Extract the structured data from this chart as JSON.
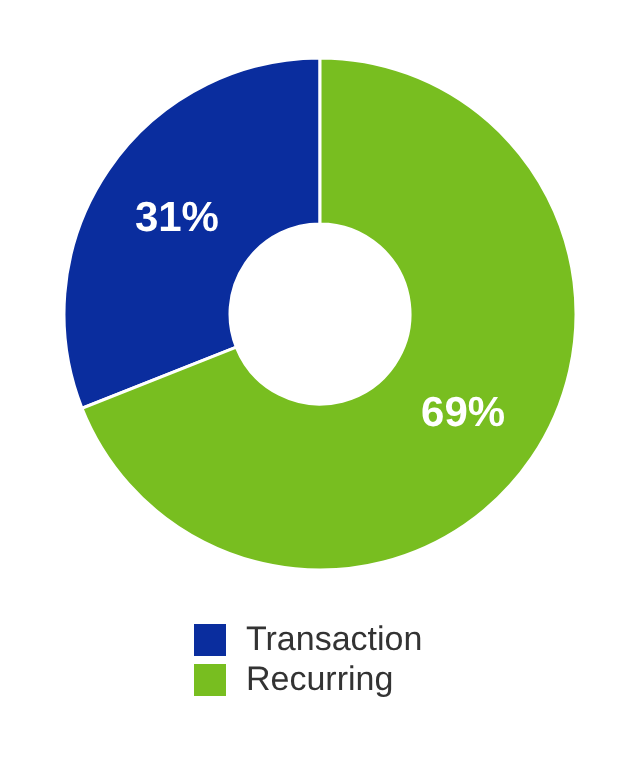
{
  "chart_data": {
    "type": "donut",
    "categories": [
      "Transaction",
      "Recurring"
    ],
    "values": [
      31,
      69
    ],
    "colors": [
      "#0a2d9e",
      "#78be20"
    ],
    "value_labels": [
      "31%",
      "69%"
    ],
    "legend": "bottom"
  }
}
